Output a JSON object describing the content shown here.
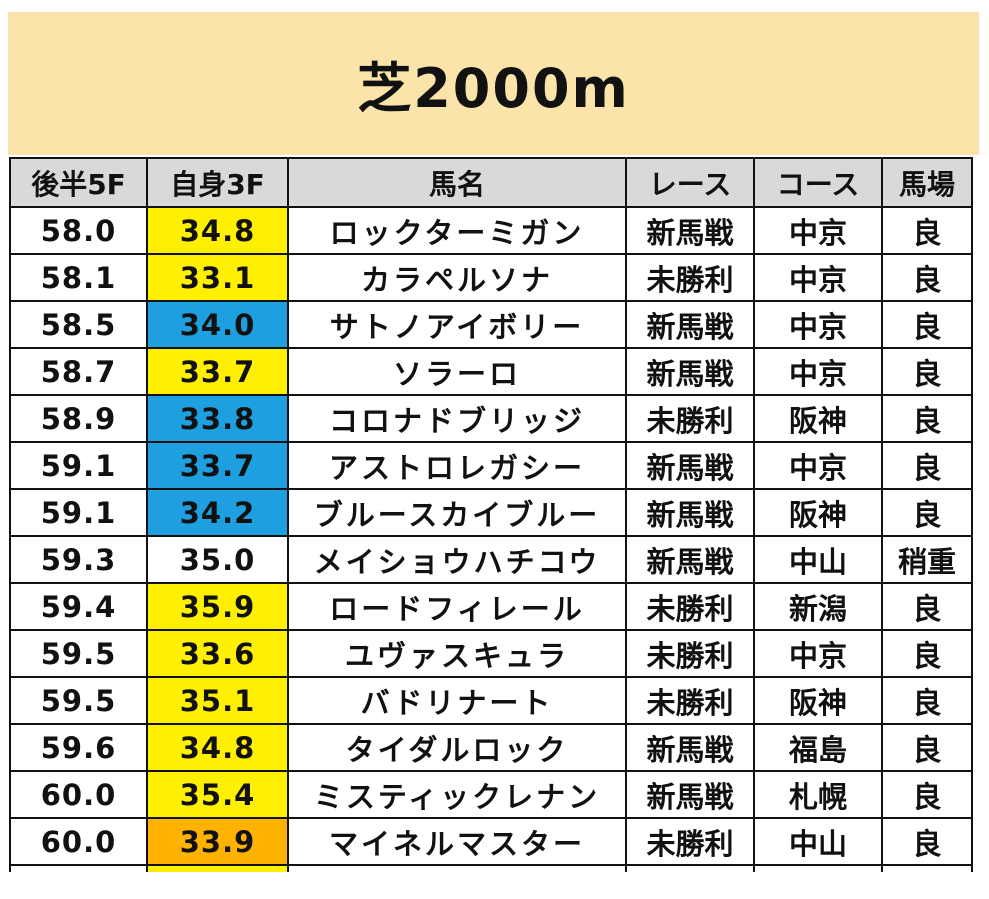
{
  "title": "芝2000m",
  "colors": {
    "title_bg": "#fbe4a9",
    "header_bg": "#d9d9d9",
    "yellow": "#ffef00",
    "blue": "#1e9fdf",
    "orange": "#ffb300",
    "white": "#ffffff"
  },
  "columns": [
    "後半5F",
    "自身3F",
    "馬名",
    "レース",
    "コース",
    "馬場"
  ],
  "rows": [
    {
      "late5f": "58.0",
      "own3f": "34.8",
      "own3f_color": "yellow",
      "name": "ロックターミガン",
      "race": "新馬戦",
      "course": "中京",
      "track": "良"
    },
    {
      "late5f": "58.1",
      "own3f": "33.1",
      "own3f_color": "yellow",
      "name": "カラペルソナ",
      "race": "未勝利",
      "course": "中京",
      "track": "良"
    },
    {
      "late5f": "58.5",
      "own3f": "34.0",
      "own3f_color": "blue",
      "name": "サトノアイボリー",
      "race": "新馬戦",
      "course": "中京",
      "track": "良"
    },
    {
      "late5f": "58.7",
      "own3f": "33.7",
      "own3f_color": "yellow",
      "name": "ソラーロ",
      "race": "新馬戦",
      "course": "中京",
      "track": "良"
    },
    {
      "late5f": "58.9",
      "own3f": "33.8",
      "own3f_color": "blue",
      "name": "コロナドブリッジ",
      "race": "未勝利",
      "course": "阪神",
      "track": "良"
    },
    {
      "late5f": "59.1",
      "own3f": "33.7",
      "own3f_color": "blue",
      "name": "アストロレガシー",
      "race": "新馬戦",
      "course": "中京",
      "track": "良"
    },
    {
      "late5f": "59.1",
      "own3f": "34.2",
      "own3f_color": "blue",
      "name": "ブルースカイブルー",
      "race": "新馬戦",
      "course": "阪神",
      "track": "良"
    },
    {
      "late5f": "59.3",
      "own3f": "35.0",
      "own3f_color": "white",
      "name": "メイショウハチコウ",
      "race": "新馬戦",
      "course": "中山",
      "track": "稍重"
    },
    {
      "late5f": "59.4",
      "own3f": "35.9",
      "own3f_color": "yellow",
      "name": "ロードフィレール",
      "race": "未勝利",
      "course": "新潟",
      "track": "良"
    },
    {
      "late5f": "59.5",
      "own3f": "33.6",
      "own3f_color": "yellow",
      "name": "ユヴァスキュラ",
      "race": "未勝利",
      "course": "中京",
      "track": "良"
    },
    {
      "late5f": "59.5",
      "own3f": "35.1",
      "own3f_color": "yellow",
      "name": "バドリナート",
      "race": "未勝利",
      "course": "阪神",
      "track": "良"
    },
    {
      "late5f": "59.6",
      "own3f": "34.8",
      "own3f_color": "yellow",
      "name": "タイダルロック",
      "race": "新馬戦",
      "course": "福島",
      "track": "良"
    },
    {
      "late5f": "60.0",
      "own3f": "35.4",
      "own3f_color": "yellow",
      "name": "ミスティックレナン",
      "race": "新馬戦",
      "course": "札幌",
      "track": "良"
    },
    {
      "late5f": "60.0",
      "own3f": "33.9",
      "own3f_color": "orange",
      "name": "マイネルマスター",
      "race": "未勝利",
      "course": "中山",
      "track": "良"
    }
  ]
}
